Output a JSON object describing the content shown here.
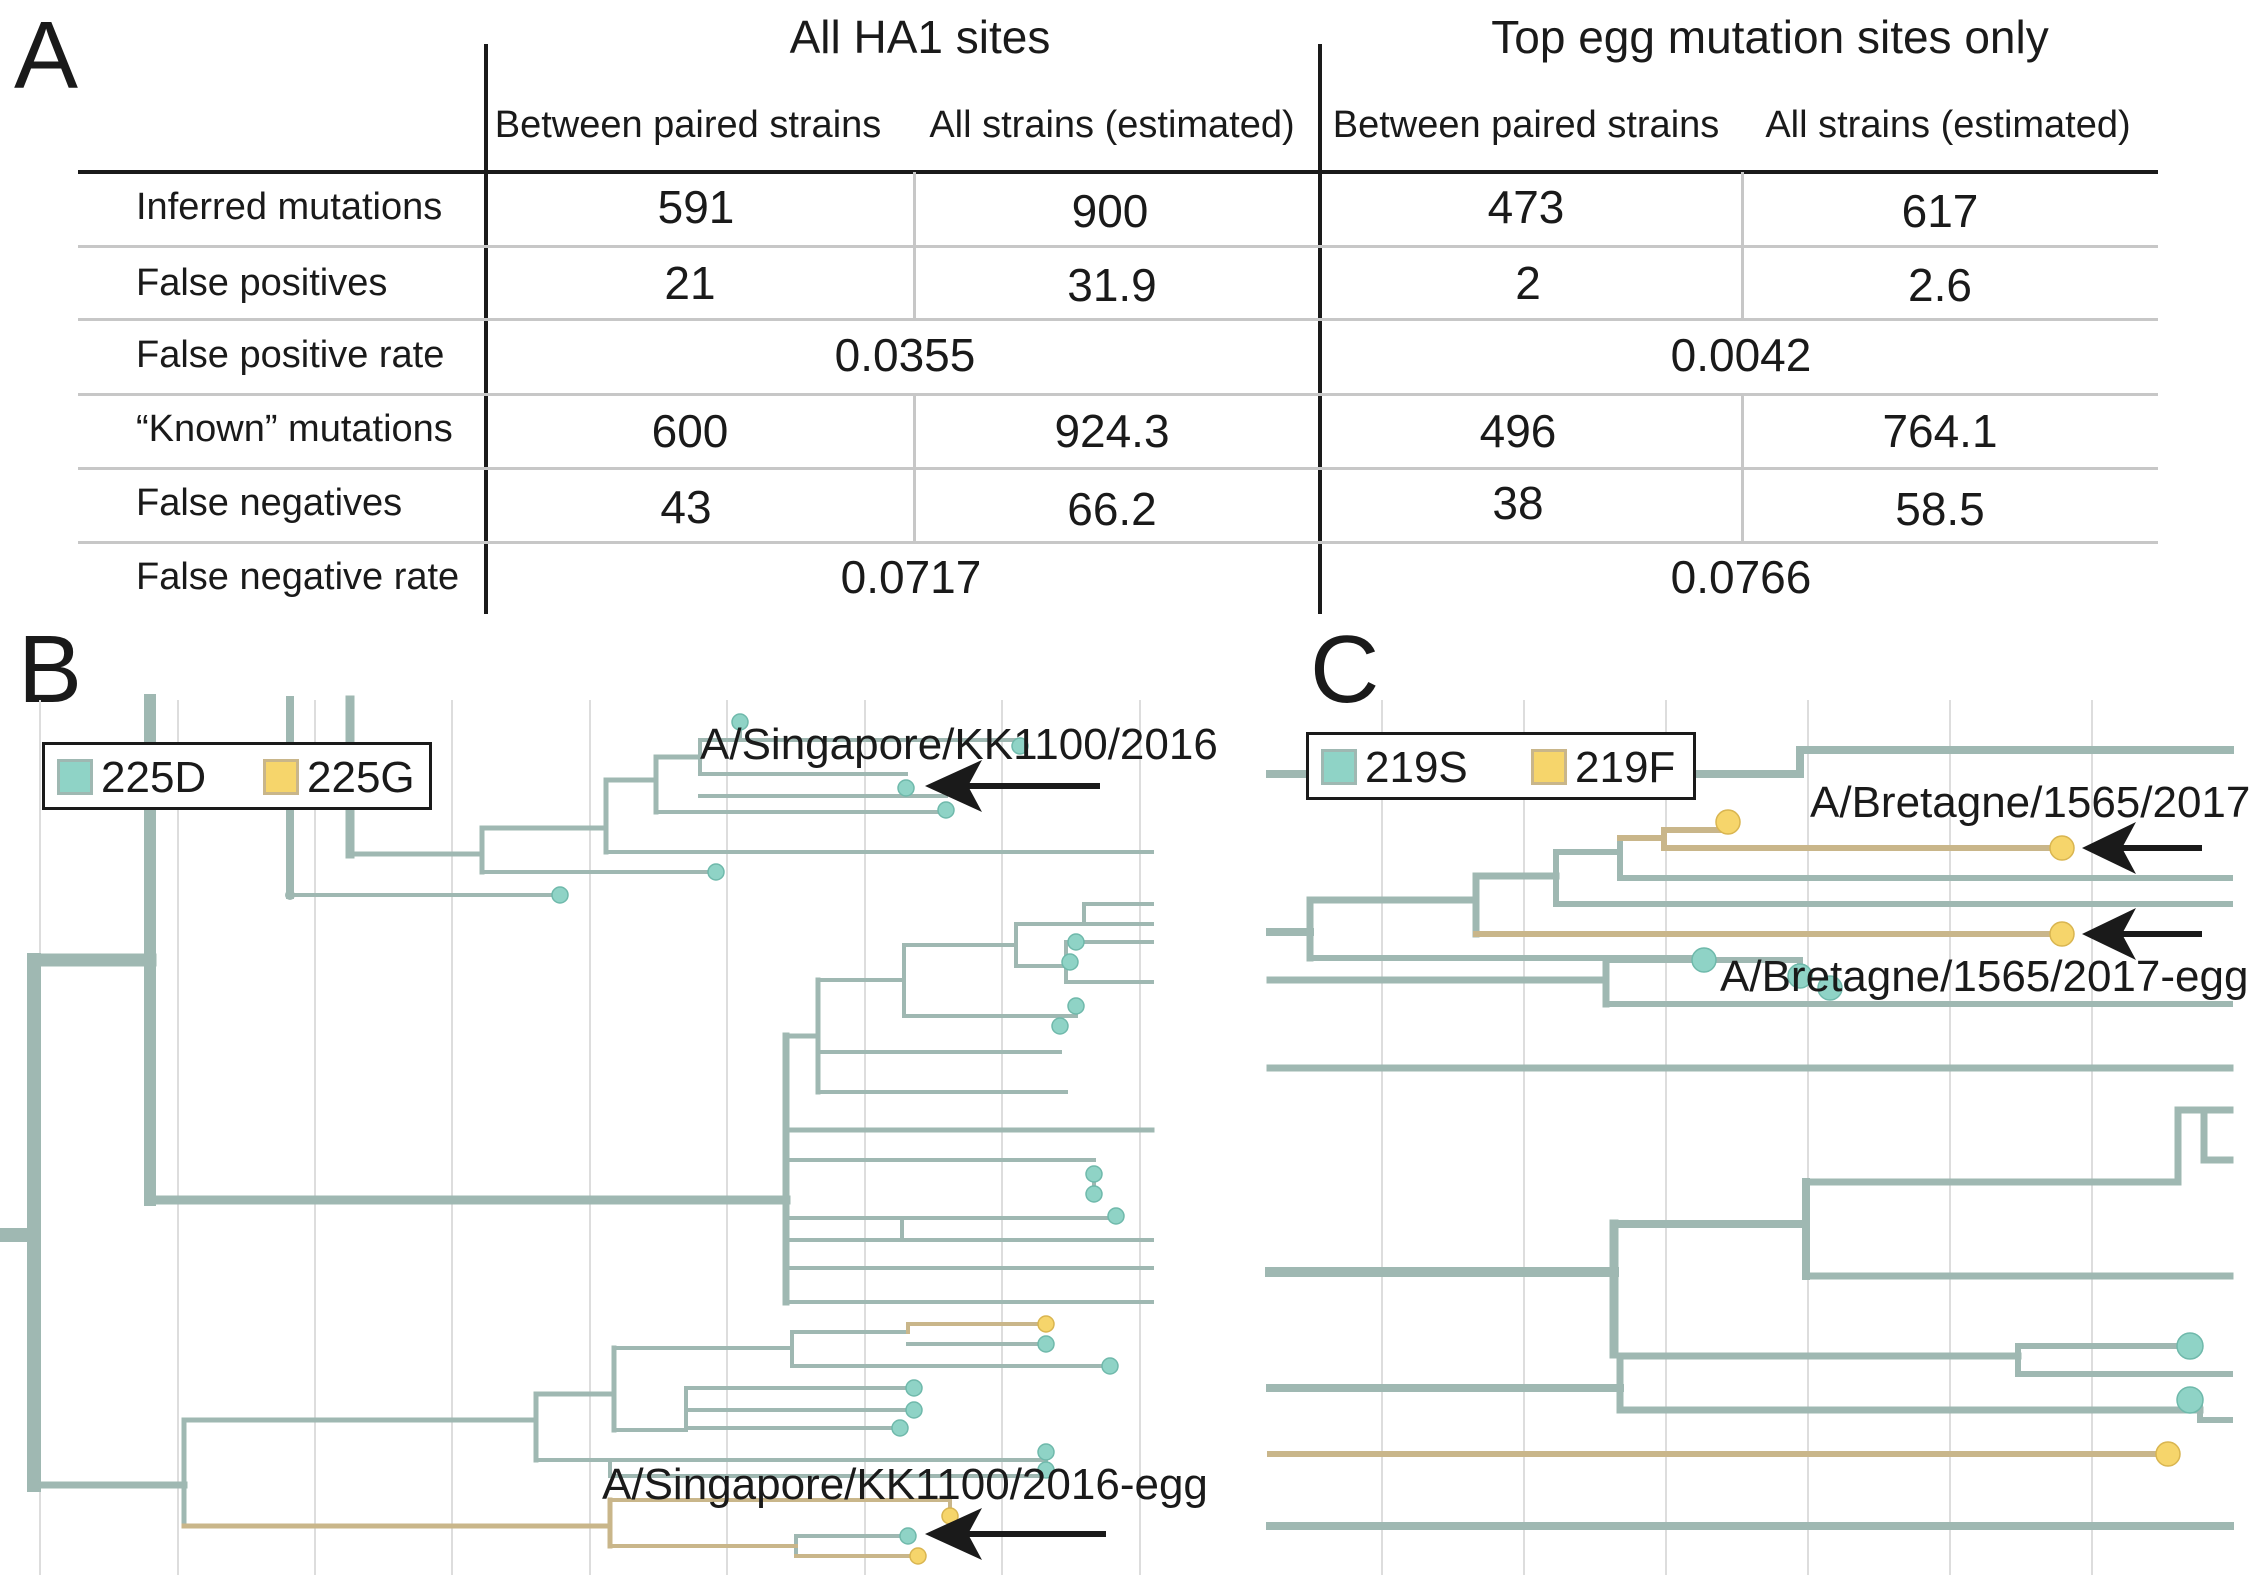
{
  "panels": {
    "a": "A",
    "b": "B",
    "c": "C"
  },
  "table": {
    "groups": [
      "All HA1 sites",
      "Top egg mutation sites only"
    ],
    "subheaders": [
      "Between paired strains",
      "All strains (estimated)",
      "Between paired strains",
      "All strains (estimated)"
    ],
    "rows": [
      {
        "label": "Inferred mutations",
        "values": [
          "591",
          "900",
          "473",
          "617"
        ]
      },
      {
        "label": "False positives",
        "values": [
          "21",
          "31.9",
          "2",
          "2.6"
        ]
      },
      {
        "label": "False positive rate",
        "merged": [
          "0.0355",
          "0.0042"
        ]
      },
      {
        "label": "“Known” mutations",
        "values": [
          "600",
          "924.3",
          "496",
          "764.1"
        ]
      },
      {
        "label": "False negatives",
        "values": [
          "43",
          "66.2",
          "38",
          "58.5"
        ]
      },
      {
        "label": "False negative rate",
        "merged": [
          "0.0717",
          "0.0766"
        ]
      }
    ]
  },
  "tree_b": {
    "legend": [
      {
        "label": "225D",
        "color": "#8fd3c6"
      },
      {
        "label": "225G",
        "color": "#f6d56b"
      }
    ],
    "labels": {
      "top": "A/Singapore/KK1100/2016",
      "bottom": "A/Singapore/KK1100/2016-egg"
    }
  },
  "tree_c": {
    "legend": [
      {
        "label": "219S",
        "color": "#8fd3c6"
      },
      {
        "label": "219F",
        "color": "#f6d56b"
      }
    ],
    "labels": {
      "top": "A/Bretagne/1565/2017",
      "bottom": "A/Bretagne/1565/2017-egg"
    }
  },
  "colors": {
    "branch_s": "#9fb8b2",
    "branch_g": "#c9b68a",
    "tip_s": "#8fd3c6",
    "tip_g": "#f6d56b",
    "grid": "#dddddd"
  }
}
